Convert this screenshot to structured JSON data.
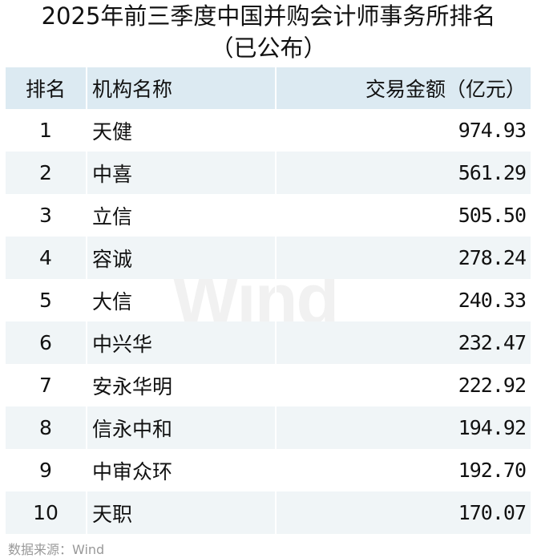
{
  "title_line1": "2025年前三季度中国并购会计师事务所排名",
  "title_line2": "（已公布）",
  "columns": [
    "排名",
    "机构名称",
    "交易金额（亿元）"
  ],
  "rows": [
    {
      "rank": "1",
      "name": "天健",
      "amount": "974.93"
    },
    {
      "rank": "2",
      "name": "中喜",
      "amount": "561.29"
    },
    {
      "rank": "3",
      "name": "立信",
      "amount": "505.50"
    },
    {
      "rank": "4",
      "name": "容诚",
      "amount": "278.24"
    },
    {
      "rank": "5",
      "name": "大信",
      "amount": "240.33"
    },
    {
      "rank": "6",
      "name": "中兴华",
      "amount": "232.47"
    },
    {
      "rank": "7",
      "name": "安永华明",
      "amount": "222.92"
    },
    {
      "rank": "8",
      "name": "信永中和",
      "amount": "194.92"
    },
    {
      "rank": "9",
      "name": "中审众环",
      "amount": "192.70"
    },
    {
      "rank": "10",
      "name": "天职",
      "amount": "170.07"
    }
  ],
  "watermark": "Wind",
  "source": "数据来源：Wind",
  "colors": {
    "header_bg": "#dceaf2",
    "stripe_bg": "#f0f5f7"
  }
}
